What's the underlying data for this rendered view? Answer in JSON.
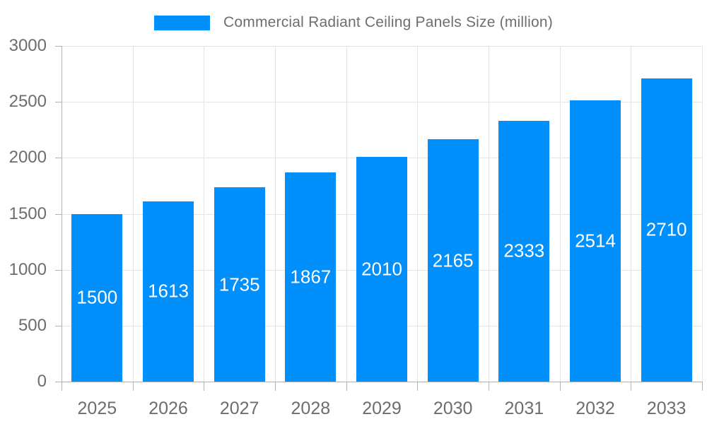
{
  "legend": {
    "label": "Commercial Radiant Ceiling Panels Size (million)"
  },
  "colors": {
    "bar": "#008FFB",
    "grid": "#e4e4e4",
    "axis": "#b3b3b3",
    "axis_label": "#6d6d6d",
    "legend_text": "#6e6e6e",
    "data_label": "#ffffff",
    "background": "#ffffff"
  },
  "chart_data": {
    "type": "bar",
    "title": "Commercial Radiant Ceiling Panels Size (million)",
    "categories": [
      "2025",
      "2026",
      "2027",
      "2028",
      "2029",
      "2030",
      "2031",
      "2032",
      "2033"
    ],
    "series": [
      {
        "name": "Commercial Radiant Ceiling Panels Size (million)",
        "values": [
          1500,
          1613,
          1735,
          1867,
          2010,
          2165,
          2333,
          2514,
          2710
        ]
      }
    ],
    "xlabel": "",
    "ylabel": "",
    "ylim": [
      0,
      3000
    ],
    "yticks": [
      0,
      500,
      1000,
      1500,
      2000,
      2500,
      3000
    ],
    "grid": true,
    "legend_position": "top",
    "data_labels": "inside-center"
  }
}
